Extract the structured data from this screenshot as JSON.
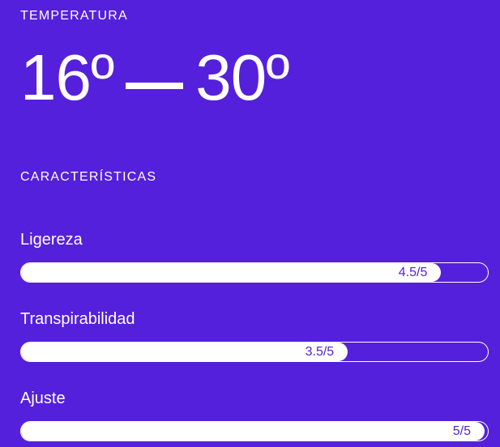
{
  "theme": {
    "background_color": "#5520DB",
    "text_color": "#FFFFFF",
    "bar_fill_color": "#FFFFFF",
    "bar_value_text_color": "#5520DB"
  },
  "temperature": {
    "heading": "TEMPERATURA",
    "min": "16º",
    "max": "30º",
    "separator": "—"
  },
  "features": {
    "heading": "CARACTERÍSTICAS",
    "items": [
      {
        "label": "Ligereza",
        "value": 4.5,
        "max": 5,
        "display": "4.5/5"
      },
      {
        "label": "Transpirabilidad",
        "value": 3.5,
        "max": 5,
        "display": "3.5/5"
      },
      {
        "label": "Ajuste",
        "value": 5,
        "max": 5,
        "display": "5/5"
      }
    ]
  }
}
